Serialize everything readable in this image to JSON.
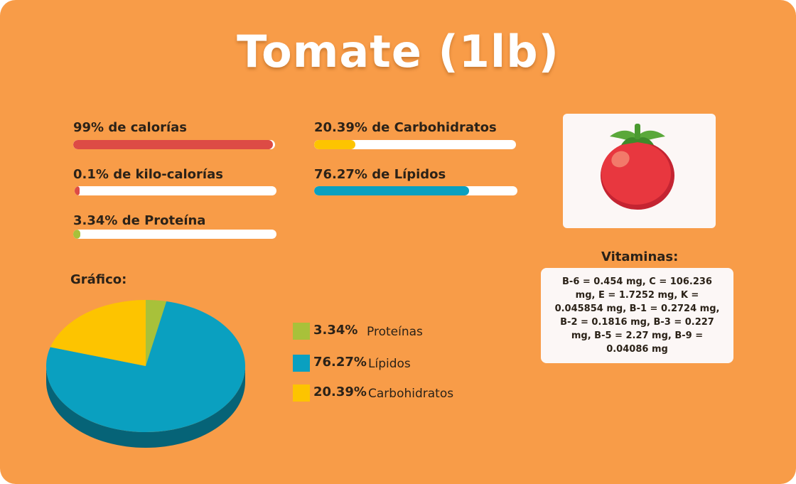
{
  "title": "Tomate (1lb)",
  "metrics": [
    {
      "label": "99% de calorías",
      "percent": 99,
      "color": "#dd4b45"
    },
    {
      "label": "0.1% de kilo-calorías",
      "percent": 0.1,
      "color": "#dd4b45"
    },
    {
      "label": "3.34% de Proteína",
      "percent": 3.34,
      "color": "#a8c13a"
    },
    {
      "label": "20.39% de Carbohidratos",
      "percent": 20.39,
      "color": "#fdc400"
    },
    {
      "label": "76.27% de Lípidos",
      "percent": 76.27,
      "color": "#0aa0c0"
    }
  ],
  "image": {
    "icon": "tomato-icon"
  },
  "vitamins": {
    "heading": "Vitaminas:",
    "text": "B-6 = 0.454 mg, C = 106.236 mg, E = 1.7252 mg, K = 0.045854 mg, B-1 = 0.2724 mg, B-2 = 0.1816 mg, B-3 = 0.227 mg, B-5 = 2.27 mg, B-9 = 0.04086 mg"
  },
  "chart_heading": "Gráfico:",
  "chart_data": {
    "type": "pie",
    "labels": [
      "Proteínas",
      "Lípidos",
      "Carbohidratos"
    ],
    "values": [
      3.34,
      76.27,
      20.39
    ],
    "value_labels": [
      "3.34%",
      "76.27%",
      "20.39%"
    ],
    "colors": [
      "#a8c13a",
      "#0aa0c0",
      "#fdc400"
    ],
    "legend": "right"
  }
}
